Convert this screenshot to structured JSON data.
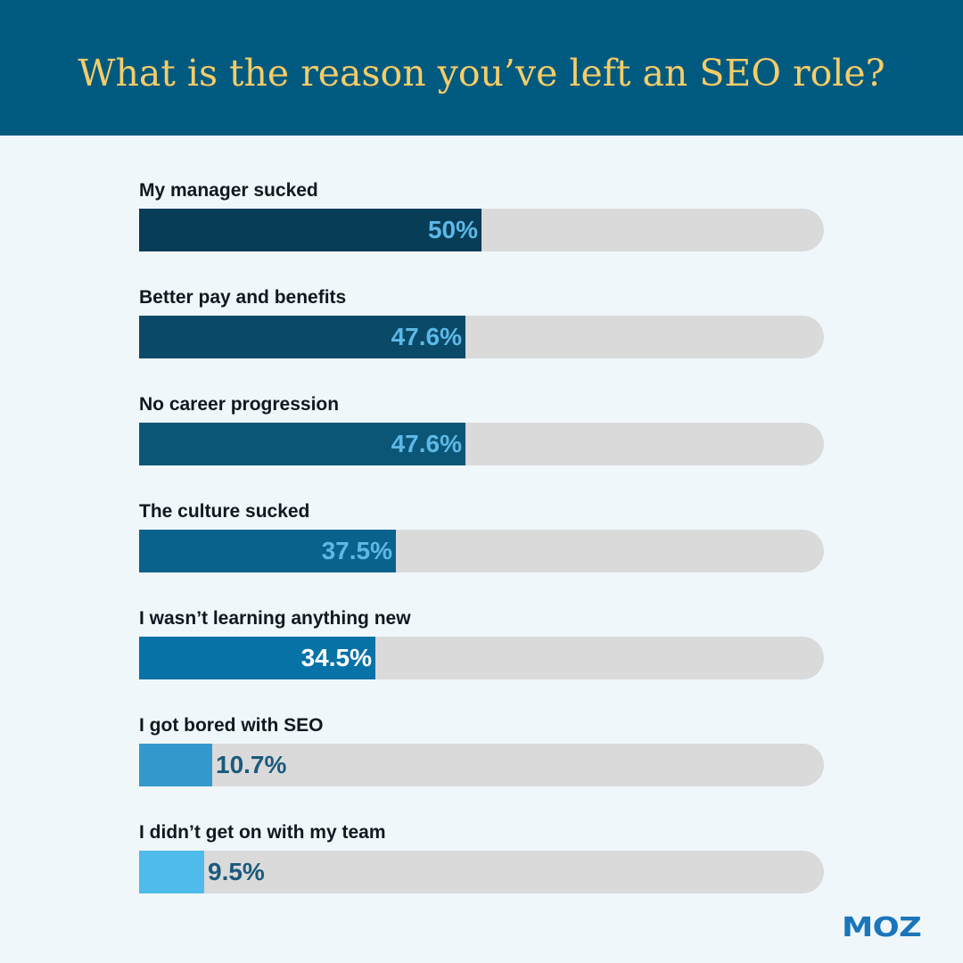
{
  "title": "What is the reason you’ve left an SEO role?",
  "logo": "MOZ",
  "colors": {
    "header_bg": "#005a7f",
    "title_text": "#f5cd68",
    "page_bg": "#f0f7fa",
    "track": "#dadada",
    "label_text": "#101820",
    "value_inside": "#5db8e6",
    "value_inside_light": "#ffffff",
    "value_outside": "#1b5a7d",
    "logo": "#1b75bb"
  },
  "chart_data": {
    "type": "bar",
    "orientation": "horizontal",
    "title": "What is the reason you’ve left an SEO role?",
    "xlim": [
      0,
      100
    ],
    "unit": "%",
    "categories": [
      "My manager sucked",
      "Better pay and benefits",
      "No career progression",
      "The culture sucked",
      "I wasn’t learning anything new",
      "I got bored with SEO",
      "I didn’t get on with my team"
    ],
    "values": [
      50,
      47.6,
      47.6,
      37.5,
      34.5,
      10.7,
      9.5
    ],
    "value_labels": [
      "50%",
      "47.6%",
      "47.6%",
      "37.5%",
      "34.5%",
      "10.7%",
      "9.5%"
    ],
    "bar_colors": [
      "#073d57",
      "#0a4a68",
      "#0b5677",
      "#08628c",
      "#0772a6",
      "#3399cc",
      "#4fbbea"
    ],
    "grid": false,
    "legend": "none"
  }
}
